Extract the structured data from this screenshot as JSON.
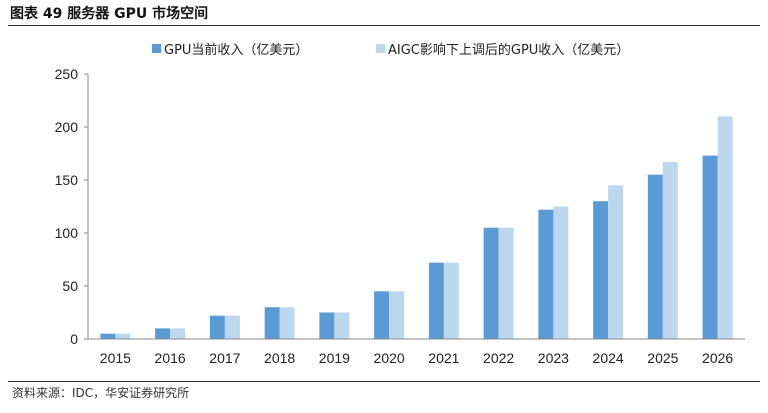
{
  "figure": {
    "title": "图表 49 服务器 GPU 市场空间",
    "source": "资料来源：IDC，华安证券研究所"
  },
  "colors": {
    "series1": "#5b9bd5",
    "series2": "#bdd7ee",
    "axis": "#888888"
  },
  "chart_data": {
    "type": "bar",
    "title": "",
    "xlabel": "",
    "ylabel": "",
    "categories": [
      "2015",
      "2016",
      "2017",
      "2018",
      "2019",
      "2020",
      "2021",
      "2022",
      "2023",
      "2024",
      "2025",
      "2026"
    ],
    "series": [
      {
        "name": "GPU当前收入（亿美元）",
        "values": [
          5,
          10,
          22,
          30,
          25,
          45,
          72,
          105,
          122,
          130,
          155,
          173
        ]
      },
      {
        "name": "AIGC影响下上调后的GPU收入（亿美元）",
        "values": [
          5,
          10,
          22,
          30,
          25,
          45,
          72,
          105,
          125,
          145,
          167,
          210
        ]
      }
    ],
    "ylim": [
      0,
      250
    ],
    "yticks": [
      0,
      50,
      100,
      150,
      200,
      250
    ],
    "grid": false,
    "legend_position": "top"
  }
}
